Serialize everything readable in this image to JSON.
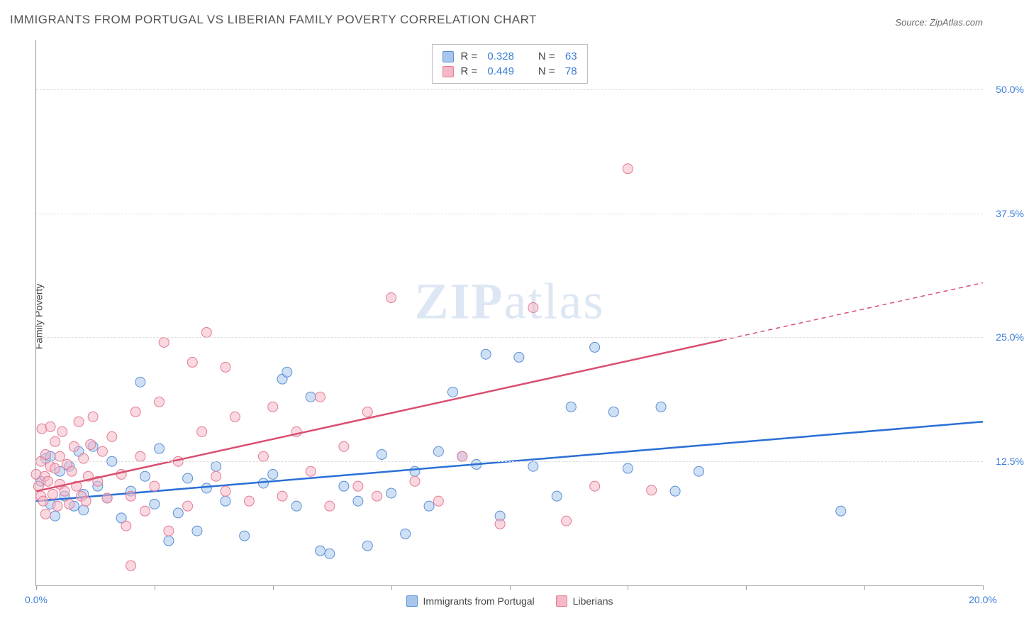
{
  "title": "IMMIGRANTS FROM PORTUGAL VS LIBERIAN FAMILY POVERTY CORRELATION CHART",
  "source_label": "Source:",
  "source_name": "ZipAtlas.com",
  "ylabel": "Family Poverty",
  "watermark_bold": "ZIP",
  "watermark_rest": "atlas",
  "chart": {
    "type": "scatter",
    "xlim": [
      0,
      20
    ],
    "ylim": [
      0,
      55
    ],
    "xticks": [
      0,
      2.5,
      5,
      7.5,
      10,
      12.5,
      15,
      17.5,
      20
    ],
    "xtick_labels": {
      "0": "0.0%",
      "20": "20.0%"
    },
    "yticks": [
      12.5,
      25.0,
      37.5,
      50.0
    ],
    "ytick_labels": [
      "12.5%",
      "25.0%",
      "37.5%",
      "50.0%"
    ],
    "background_color": "#ffffff",
    "grid_color": "#dddddd",
    "axis_color": "#999999",
    "label_color": "#3b7dd8",
    "marker_radius": 7,
    "marker_opacity": 0.55,
    "series": [
      {
        "name": "Immigrants from Portugal",
        "color_fill": "#a8c6ec",
        "color_stroke": "#5b8fd6",
        "R": "0.328",
        "N": "63",
        "trend": {
          "x1": 0,
          "y1": 8.5,
          "x2": 20,
          "y2": 16.5,
          "color": "#2a6fd6",
          "width": 2.5,
          "dash_after_x": null
        },
        "points": [
          [
            0.1,
            10.5
          ],
          [
            0.2,
            12.8
          ],
          [
            0.3,
            8.2
          ],
          [
            0.3,
            13.0
          ],
          [
            0.4,
            7.0
          ],
          [
            0.5,
            11.5
          ],
          [
            0.6,
            9.0
          ],
          [
            0.7,
            12.0
          ],
          [
            0.8,
            8.0
          ],
          [
            0.9,
            13.5
          ],
          [
            1.0,
            9.2
          ],
          [
            1.0,
            7.6
          ],
          [
            1.2,
            14.0
          ],
          [
            1.3,
            10.0
          ],
          [
            1.5,
            8.8
          ],
          [
            1.6,
            12.5
          ],
          [
            1.8,
            6.8
          ],
          [
            2.0,
            9.5
          ],
          [
            2.2,
            20.5
          ],
          [
            2.3,
            11.0
          ],
          [
            2.5,
            8.2
          ],
          [
            2.6,
            13.8
          ],
          [
            2.8,
            4.5
          ],
          [
            3.0,
            7.3
          ],
          [
            3.2,
            10.8
          ],
          [
            3.4,
            5.5
          ],
          [
            3.6,
            9.8
          ],
          [
            3.8,
            12.0
          ],
          [
            4.0,
            8.5
          ],
          [
            4.4,
            5.0
          ],
          [
            4.8,
            10.3
          ],
          [
            5.0,
            11.2
          ],
          [
            5.2,
            20.8
          ],
          [
            5.3,
            21.5
          ],
          [
            5.5,
            8.0
          ],
          [
            5.8,
            19.0
          ],
          [
            6.0,
            3.5
          ],
          [
            6.5,
            10.0
          ],
          [
            6.8,
            8.5
          ],
          [
            7.0,
            4.0
          ],
          [
            7.3,
            13.2
          ],
          [
            7.5,
            9.3
          ],
          [
            7.8,
            5.2
          ],
          [
            8.0,
            11.5
          ],
          [
            8.3,
            8.0
          ],
          [
            8.5,
            13.5
          ],
          [
            8.8,
            19.5
          ],
          [
            9.0,
            13.0
          ],
          [
            9.3,
            12.2
          ],
          [
            9.8,
            7.0
          ],
          [
            10.2,
            23.0
          ],
          [
            10.5,
            12.0
          ],
          [
            11.0,
            9.0
          ],
          [
            11.3,
            18.0
          ],
          [
            11.8,
            24.0
          ],
          [
            12.2,
            17.5
          ],
          [
            12.5,
            11.8
          ],
          [
            13.2,
            18.0
          ],
          [
            13.5,
            9.5
          ],
          [
            14.0,
            11.5
          ],
          [
            17.0,
            7.5
          ],
          [
            9.5,
            23.3
          ],
          [
            6.2,
            3.2
          ]
        ]
      },
      {
        "name": "Liberians",
        "color_fill": "#f4b8c6",
        "color_stroke": "#e57a94",
        "R": "0.449",
        "N": "78",
        "trend": {
          "x1": 0,
          "y1": 9.5,
          "x2": 20,
          "y2": 30.5,
          "color": "#d94f70",
          "width": 2.5,
          "dash_after_x": 14.5
        },
        "points": [
          [
            0.0,
            11.2
          ],
          [
            0.05,
            10.0
          ],
          [
            0.1,
            12.5
          ],
          [
            0.1,
            9.0
          ],
          [
            0.12,
            15.8
          ],
          [
            0.15,
            8.5
          ],
          [
            0.18,
            11.0
          ],
          [
            0.2,
            13.2
          ],
          [
            0.2,
            7.2
          ],
          [
            0.25,
            10.5
          ],
          [
            0.3,
            12.0
          ],
          [
            0.3,
            16.0
          ],
          [
            0.35,
            9.2
          ],
          [
            0.4,
            11.8
          ],
          [
            0.4,
            14.5
          ],
          [
            0.45,
            8.0
          ],
          [
            0.5,
            10.2
          ],
          [
            0.5,
            13.0
          ],
          [
            0.55,
            15.5
          ],
          [
            0.6,
            9.5
          ],
          [
            0.65,
            12.2
          ],
          [
            0.7,
            8.2
          ],
          [
            0.75,
            11.5
          ],
          [
            0.8,
            14.0
          ],
          [
            0.85,
            10.0
          ],
          [
            0.9,
            16.5
          ],
          [
            0.95,
            9.0
          ],
          [
            1.0,
            12.8
          ],
          [
            1.05,
            8.5
          ],
          [
            1.1,
            11.0
          ],
          [
            1.15,
            14.2
          ],
          [
            1.2,
            17.0
          ],
          [
            1.3,
            10.5
          ],
          [
            1.4,
            13.5
          ],
          [
            1.5,
            8.8
          ],
          [
            1.6,
            15.0
          ],
          [
            1.8,
            11.2
          ],
          [
            1.9,
            6.0
          ],
          [
            2.0,
            9.0
          ],
          [
            2.1,
            17.5
          ],
          [
            2.2,
            13.0
          ],
          [
            2.3,
            7.5
          ],
          [
            2.5,
            10.0
          ],
          [
            2.6,
            18.5
          ],
          [
            2.7,
            24.5
          ],
          [
            2.8,
            5.5
          ],
          [
            3.0,
            12.5
          ],
          [
            3.2,
            8.0
          ],
          [
            3.3,
            22.5
          ],
          [
            3.5,
            15.5
          ],
          [
            3.6,
            25.5
          ],
          [
            3.8,
            11.0
          ],
          [
            4.0,
            22.0
          ],
          [
            4.0,
            9.5
          ],
          [
            4.2,
            17.0
          ],
          [
            4.5,
            8.5
          ],
          [
            4.8,
            13.0
          ],
          [
            5.0,
            18.0
          ],
          [
            5.2,
            9.0
          ],
          [
            5.5,
            15.5
          ],
          [
            5.8,
            11.5
          ],
          [
            6.0,
            19.0
          ],
          [
            6.2,
            8.0
          ],
          [
            6.5,
            14.0
          ],
          [
            6.8,
            10.0
          ],
          [
            7.0,
            17.5
          ],
          [
            7.2,
            9.0
          ],
          [
            7.5,
            29.0
          ],
          [
            8.0,
            10.5
          ],
          [
            8.5,
            8.5
          ],
          [
            9.0,
            13.0
          ],
          [
            9.8,
            6.2
          ],
          [
            10.5,
            28.0
          ],
          [
            11.2,
            6.5
          ],
          [
            11.8,
            10.0
          ],
          [
            12.5,
            42.0
          ],
          [
            13.0,
            9.6
          ],
          [
            2.0,
            2.0
          ]
        ]
      }
    ],
    "legend_bottom": [
      {
        "label": "Immigrants from Portugal",
        "fill": "#a8c6ec",
        "stroke": "#5b8fd6"
      },
      {
        "label": "Liberians",
        "fill": "#f4b8c6",
        "stroke": "#e57a94"
      }
    ]
  }
}
